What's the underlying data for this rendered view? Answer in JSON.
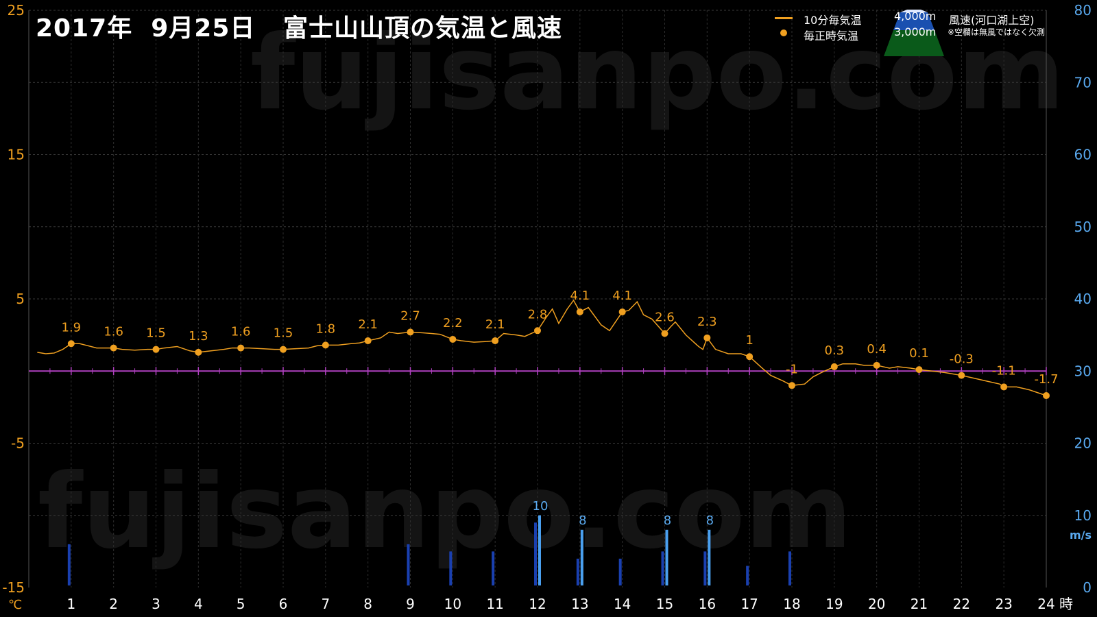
{
  "title": "2017年  9月25日   富士山山頂の気温と風速",
  "watermark": "fujisanpo.com",
  "legend": {
    "temp10": "10分毎気温",
    "hourly": "毎正時気温",
    "alt4000": "4,000m",
    "alt3000": "3,000m",
    "wind_label": "風速(河口湖上空)",
    "note": "※空欄は無風ではなく欠測"
  },
  "colors": {
    "temp": "#f0a020",
    "zero_line": "#b040c0",
    "wind_dark": "#1a40b0",
    "wind_light": "#4aa0f0",
    "temp_axis": "#f0a020",
    "wind_axis": "#5aaaf0"
  },
  "chart_data": {
    "type": "line",
    "x_unit": "時",
    "y_left": {
      "unit": "℃",
      "range": [
        -15,
        25
      ],
      "ticks": [
        25,
        15,
        5,
        -5,
        -15
      ]
    },
    "y_right": {
      "unit": "m/s",
      "range": [
        0,
        80
      ],
      "ticks": [
        80,
        70,
        60,
        50,
        40,
        30,
        20,
        10,
        0
      ]
    },
    "x_ticks": [
      1,
      2,
      3,
      4,
      5,
      6,
      7,
      8,
      9,
      10,
      11,
      12,
      13,
      14,
      15,
      16,
      17,
      18,
      19,
      20,
      21,
      22,
      23,
      24
    ],
    "hourly_temps": [
      1.9,
      1.6,
      1.5,
      1.3,
      1.6,
      1.5,
      1.8,
      2.1,
      2.7,
      2.2,
      2.1,
      2.8,
      4.1,
      4.1,
      2.6,
      2.3,
      1,
      -1,
      0.3,
      0.4,
      0.1,
      -0.3,
      -1.1,
      -1.7
    ],
    "temp_10min": [
      [
        0.2,
        1.3
      ],
      [
        0.4,
        1.2
      ],
      [
        0.6,
        1.25
      ],
      [
        0.8,
        1.5
      ],
      [
        1,
        1.9
      ],
      [
        1.2,
        1.9
      ],
      [
        1.4,
        1.75
      ],
      [
        1.6,
        1.6
      ],
      [
        1.8,
        1.6
      ],
      [
        2,
        1.6
      ],
      [
        2.2,
        1.5
      ],
      [
        2.5,
        1.45
      ],
      [
        2.8,
        1.5
      ],
      [
        3,
        1.5
      ],
      [
        3.2,
        1.6
      ],
      [
        3.5,
        1.7
      ],
      [
        3.8,
        1.4
      ],
      [
        4,
        1.3
      ],
      [
        4.3,
        1.4
      ],
      [
        4.6,
        1.5
      ],
      [
        4.8,
        1.6
      ],
      [
        5,
        1.6
      ],
      [
        5.2,
        1.6
      ],
      [
        5.5,
        1.55
      ],
      [
        5.8,
        1.5
      ],
      [
        6,
        1.5
      ],
      [
        6.3,
        1.55
      ],
      [
        6.6,
        1.6
      ],
      [
        6.8,
        1.75
      ],
      [
        7,
        1.8
      ],
      [
        7.3,
        1.8
      ],
      [
        7.6,
        1.9
      ],
      [
        7.8,
        1.95
      ],
      [
        8,
        2.1
      ],
      [
        8.3,
        2.3
      ],
      [
        8.5,
        2.7
      ],
      [
        8.7,
        2.6
      ],
      [
        9,
        2.7
      ],
      [
        9.3,
        2.65
      ],
      [
        9.5,
        2.6
      ],
      [
        9.7,
        2.55
      ],
      [
        10,
        2.2
      ],
      [
        10.2,
        2.1
      ],
      [
        10.5,
        2.0
      ],
      [
        10.8,
        2.05
      ],
      [
        11,
        2.1
      ],
      [
        11.2,
        2.6
      ],
      [
        11.5,
        2.5
      ],
      [
        11.7,
        2.4
      ],
      [
        12,
        2.8
      ],
      [
        12.2,
        3.7
      ],
      [
        12.35,
        4.3
      ],
      [
        12.5,
        3.3
      ],
      [
        12.7,
        4.3
      ],
      [
        12.85,
        4.9
      ],
      [
        13,
        4.1
      ],
      [
        13.2,
        4.4
      ],
      [
        13.5,
        3.2
      ],
      [
        13.7,
        2.8
      ],
      [
        14,
        4.1
      ],
      [
        14.15,
        4.2
      ],
      [
        14.35,
        4.8
      ],
      [
        14.5,
        3.9
      ],
      [
        14.7,
        3.6
      ],
      [
        15,
        2.6
      ],
      [
        15.15,
        3.1
      ],
      [
        15.25,
        3.4
      ],
      [
        15.5,
        2.5
      ],
      [
        15.8,
        1.7
      ],
      [
        15.9,
        1.5
      ],
      [
        16,
        2.3
      ],
      [
        16.2,
        1.5
      ],
      [
        16.5,
        1.2
      ],
      [
        16.8,
        1.2
      ],
      [
        17,
        1.0
      ],
      [
        17.3,
        0.2
      ],
      [
        17.5,
        -0.3
      ],
      [
        17.8,
        -0.7
      ],
      [
        18,
        -1.0
      ],
      [
        18.3,
        -0.9
      ],
      [
        18.5,
        -0.4
      ],
      [
        18.7,
        -0.1
      ],
      [
        19,
        0.3
      ],
      [
        19.2,
        0.5
      ],
      [
        19.5,
        0.5
      ],
      [
        19.7,
        0.4
      ],
      [
        20,
        0.4
      ],
      [
        20.3,
        0.2
      ],
      [
        20.5,
        0.3
      ],
      [
        20.8,
        0.2
      ],
      [
        21,
        0.1
      ],
      [
        21.3,
        0.0
      ],
      [
        21.6,
        -0.1
      ],
      [
        22,
        -0.3
      ],
      [
        22.3,
        -0.5
      ],
      [
        22.6,
        -0.7
      ],
      [
        22.9,
        -0.9
      ],
      [
        23,
        -1.1
      ],
      [
        23.3,
        -1.1
      ],
      [
        23.6,
        -1.3
      ],
      [
        24,
        -1.7
      ]
    ],
    "wind_dark": [
      {
        "x": 1,
        "v": 6
      },
      {
        "x": 9,
        "v": 6
      },
      {
        "x": 10,
        "v": 5
      },
      {
        "x": 11,
        "v": 5
      },
      {
        "x": 12,
        "v": 9
      },
      {
        "x": 13,
        "v": 4
      },
      {
        "x": 14,
        "v": 4
      },
      {
        "x": 15,
        "v": 5
      },
      {
        "x": 16,
        "v": 5
      },
      {
        "x": 17,
        "v": 3
      },
      {
        "x": 18,
        "v": 5
      }
    ],
    "wind_light": [
      {
        "x": 12,
        "v": 10
      },
      {
        "x": 13,
        "v": 8
      },
      {
        "x": 15,
        "v": 8
      },
      {
        "x": 16,
        "v": 8
      }
    ],
    "wind_labels": [
      {
        "x": 12,
        "text": "10"
      },
      {
        "x": 13,
        "text": "8"
      },
      {
        "x": 15,
        "text": "8"
      },
      {
        "x": 16,
        "text": "8"
      }
    ]
  }
}
